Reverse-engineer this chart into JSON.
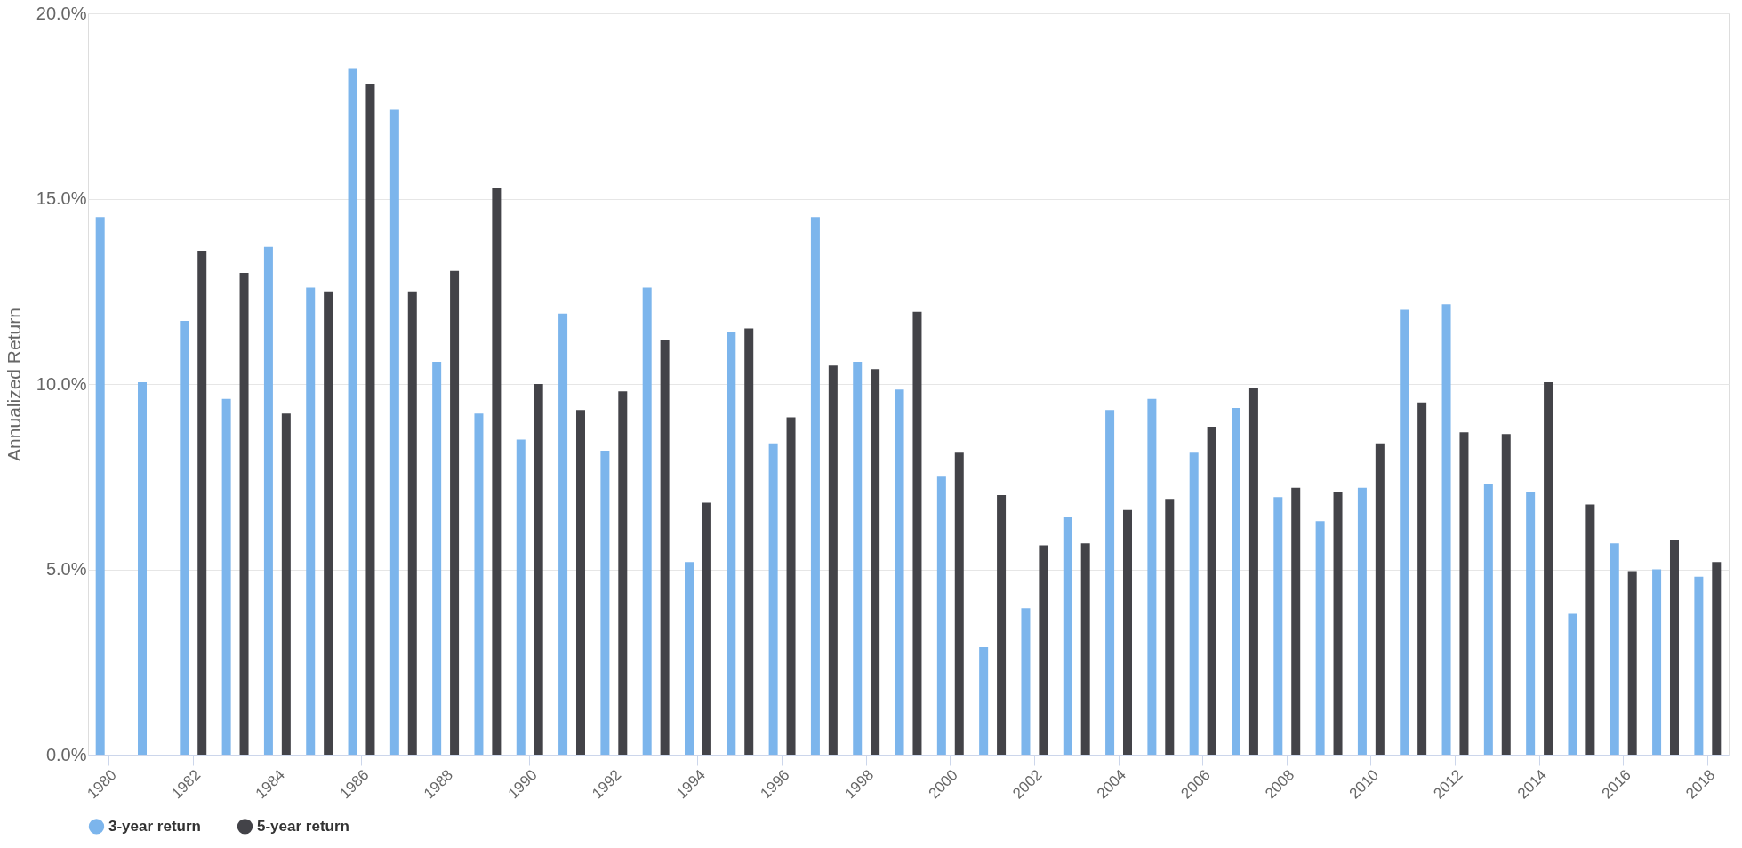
{
  "chart_data": {
    "type": "bar",
    "ylabel": "Annualized Return",
    "categories": [
      "1980",
      null,
      "1982",
      null,
      "1984",
      null,
      "1986",
      null,
      "1988",
      null,
      "1990",
      null,
      "1992",
      null,
      "1994",
      null,
      "1996",
      null,
      "1998",
      null,
      "2000",
      null,
      "2002",
      null,
      "2004",
      null,
      "2006",
      null,
      "2008",
      null,
      "2010",
      null,
      "2012",
      null,
      "2014",
      null,
      "2016",
      null,
      "2018"
    ],
    "series": [
      {
        "name": "3-year return",
        "color": "#7cb5ec",
        "values": [
          14.5,
          10.05,
          11.7,
          9.6,
          13.7,
          12.6,
          18.5,
          17.4,
          10.6,
          9.2,
          8.5,
          11.9,
          8.2,
          12.6,
          5.2,
          11.4,
          8.4,
          14.5,
          10.6,
          9.85,
          7.5,
          2.9,
          3.95,
          6.4,
          9.3,
          9.6,
          8.15,
          9.35,
          6.95,
          6.3,
          7.2,
          12.0,
          12.15,
          7.3,
          7.1,
          3.8,
          5.7,
          5.0,
          4.8
        ]
      },
      {
        "name": "5-year return",
        "color": "#434348",
        "values": [
          null,
          null,
          13.6,
          13.0,
          9.2,
          12.5,
          18.1,
          12.5,
          13.05,
          15.3,
          10.0,
          9.3,
          9.8,
          11.2,
          6.8,
          11.5,
          9.1,
          10.5,
          10.4,
          11.95,
          8.15,
          7.0,
          5.65,
          5.7,
          6.6,
          6.9,
          8.85,
          9.9,
          7.2,
          7.1,
          8.4,
          9.5,
          8.7,
          8.65,
          10.05,
          6.75,
          4.95,
          5.8,
          5.2
        ]
      }
    ],
    "ylim": [
      0,
      20
    ],
    "yticks": [
      {
        "value": 0,
        "label": "0.0%"
      },
      {
        "value": 5,
        "label": "5.0%"
      },
      {
        "value": 10,
        "label": "10.0%"
      },
      {
        "value": 15,
        "label": "15.0%"
      },
      {
        "value": 20,
        "label": "20.0%"
      }
    ],
    "grid": "y",
    "legend": "bottom"
  }
}
